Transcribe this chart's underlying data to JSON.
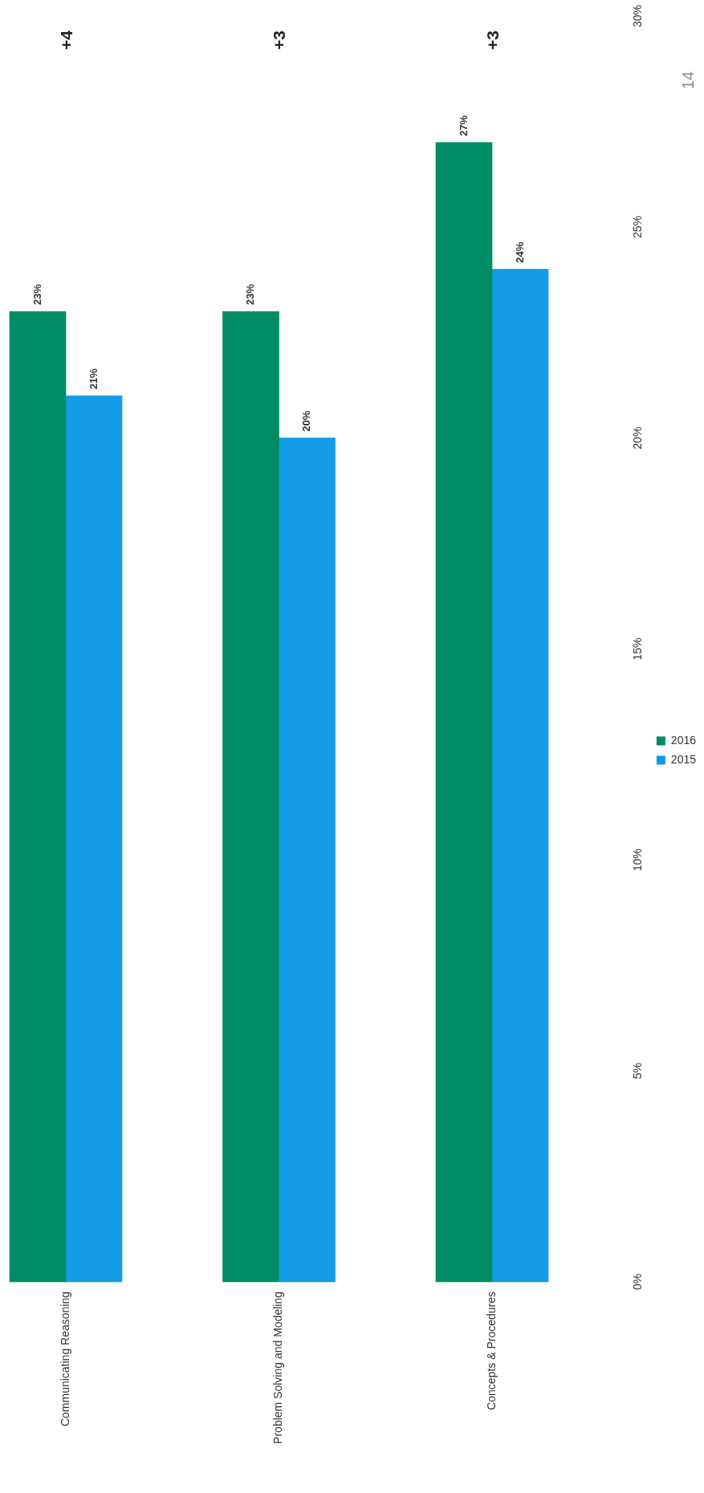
{
  "chart_data": {
    "type": "bar",
    "categories": [
      "Communicating Reasoning",
      "Problem Solving and Modeling",
      "Concepts & Procedures"
    ],
    "series": [
      {
        "name": "2016",
        "color": "#008c64",
        "values": [
          23,
          23,
          27
        ],
        "value_labels": [
          "23%",
          "23%",
          "27%"
        ]
      },
      {
        "name": "2015",
        "color": "#129be6",
        "values": [
          21,
          20,
          24
        ],
        "value_labels": [
          "21%",
          "20%",
          "24%"
        ]
      }
    ],
    "ylim": [
      0,
      30
    ],
    "yticks": [
      {
        "value": 0,
        "label": "0%"
      },
      {
        "value": 5,
        "label": "5%"
      },
      {
        "value": 10,
        "label": "10%"
      },
      {
        "value": 15,
        "label": "15%"
      },
      {
        "value": 20,
        "label": "20%"
      },
      {
        "value": 25,
        "label": "25%"
      },
      {
        "value": 30,
        "label": "30%"
      }
    ],
    "grid": false,
    "legend": "right",
    "annotations": [
      "+4",
      "+3",
      "+3",
      "14"
    ]
  }
}
